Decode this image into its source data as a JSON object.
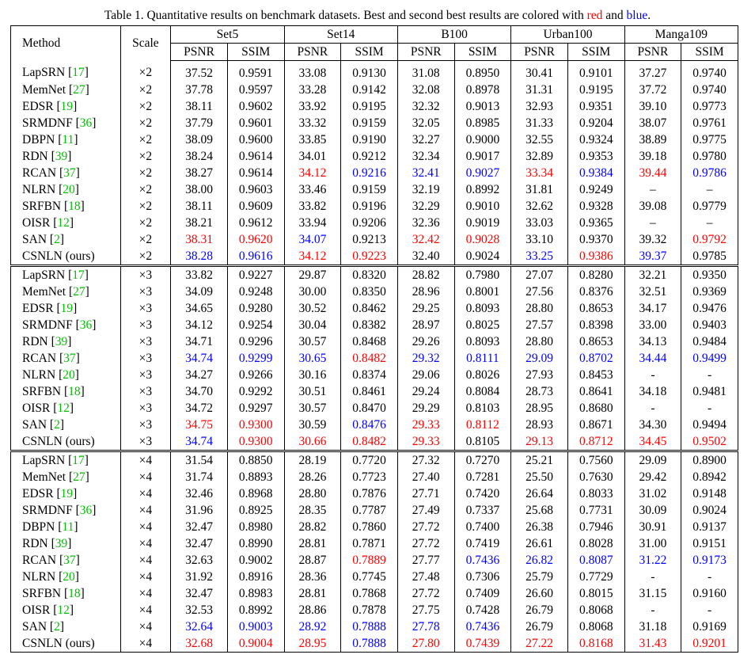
{
  "caption": {
    "prefix": "Table 1. Quantitative results on benchmark datasets. Best and second best results are colored with ",
    "red_word": "red",
    "middle": " and ",
    "blue_word": "blue",
    "suffix": "."
  },
  "header": {
    "method": "Method",
    "scale": "Scale",
    "datasets": [
      "Set5",
      "Set14",
      "B100",
      "Urban100",
      "Manga109"
    ],
    "metrics": [
      "PSNR",
      "SSIM"
    ]
  },
  "colors": {
    "red": "#ff0000",
    "blue": "#0000ff",
    "citation": "#00c000"
  },
  "groups": [
    {
      "scale": "×2",
      "rows": [
        {
          "name": "LapSRN",
          "ref": "17",
          "values": [
            "37.52",
            "0.9591",
            "33.08",
            "0.9130",
            "31.08",
            "0.8950",
            "30.41",
            "0.9101",
            "37.27",
            "0.9740"
          ],
          "colors": [
            "",
            "",
            "",
            "",
            "",
            "",
            "",
            "",
            "",
            ""
          ]
        },
        {
          "name": "MemNet",
          "ref": "27",
          "values": [
            "37.78",
            "0.9597",
            "33.28",
            "0.9142",
            "32.08",
            "0.8978",
            "31.31",
            "0.9195",
            "37.72",
            "0.9740"
          ],
          "colors": [
            "",
            "",
            "",
            "",
            "",
            "",
            "",
            "",
            "",
            ""
          ]
        },
        {
          "name": "EDSR",
          "ref": "19",
          "values": [
            "38.11",
            "0.9602",
            "33.92",
            "0.9195",
            "32.32",
            "0.9013",
            "32.93",
            "0.9351",
            "39.10",
            "0.9773"
          ],
          "colors": [
            "",
            "",
            "",
            "",
            "",
            "",
            "",
            "",
            "",
            ""
          ]
        },
        {
          "name": "SRMDNF",
          "ref": "36",
          "values": [
            "37.79",
            "0.9601",
            "33.32",
            "0.9159",
            "32.05",
            "0.8985",
            "31.33",
            "0.9204",
            "38.07",
            "0.9761"
          ],
          "colors": [
            "",
            "",
            "",
            "",
            "",
            "",
            "",
            "",
            "",
            ""
          ]
        },
        {
          "name": "DBPN",
          "ref": "11",
          "values": [
            "38.09",
            "0.9600",
            "33.85",
            "0.9190",
            "32.27",
            "0.9000",
            "32.55",
            "0.9324",
            "38.89",
            "0.9775"
          ],
          "colors": [
            "",
            "",
            "",
            "",
            "",
            "",
            "",
            "",
            "",
            ""
          ]
        },
        {
          "name": "RDN",
          "ref": "39",
          "values": [
            "38.24",
            "0.9614",
            "34.01",
            "0.9212",
            "32.34",
            "0.9017",
            "32.89",
            "0.9353",
            "39.18",
            "0.9780"
          ],
          "colors": [
            "",
            "",
            "",
            "",
            "",
            "",
            "",
            "",
            "",
            ""
          ]
        },
        {
          "name": "RCAN",
          "ref": "37",
          "values": [
            "38.27",
            "0.9614",
            "34.12",
            "0.9216",
            "32.41",
            "0.9027",
            "33.34",
            "0.9384",
            "39.44",
            "0.9786"
          ],
          "colors": [
            "",
            "",
            "red",
            "blue",
            "blue",
            "blue",
            "red",
            "blue",
            "red",
            "blue"
          ]
        },
        {
          "name": "NLRN",
          "ref": "20",
          "values": [
            "38.00",
            "0.9603",
            "33.46",
            "0.9159",
            "32.19",
            "0.8992",
            "31.81",
            "0.9249",
            "–",
            "–"
          ],
          "colors": [
            "",
            "",
            "",
            "",
            "",
            "",
            "",
            "",
            "",
            ""
          ]
        },
        {
          "name": "SRFBN",
          "ref": "18",
          "values": [
            "38.11",
            "0.9609",
            "33.82",
            "0.9196",
            "32.29",
            "0.9010",
            "32.62",
            "0.9328",
            "39.08",
            "0.9779"
          ],
          "colors": [
            "",
            "",
            "",
            "",
            "",
            "",
            "",
            "",
            "",
            ""
          ]
        },
        {
          "name": "OISR",
          "ref": "12",
          "values": [
            "38.21",
            "0.9612",
            "33.94",
            "0.9206",
            "32.36",
            "0.9019",
            "33.03",
            "0.9365",
            "–",
            "–"
          ],
          "colors": [
            "",
            "",
            "",
            "",
            "",
            "",
            "",
            "",
            "",
            ""
          ]
        },
        {
          "name": "SAN",
          "ref": "2",
          "values": [
            "38.31",
            "0.9620",
            "34.07",
            "0.9213",
            "32.42",
            "0.9028",
            "33.10",
            "0.9370",
            "39.32",
            "0.9792"
          ],
          "colors": [
            "red",
            "red",
            "blue",
            "",
            "red",
            "red",
            "",
            "",
            "",
            "red"
          ]
        },
        {
          "name": "CSNLN (ours)",
          "ref": "",
          "values": [
            "38.28",
            "0.9616",
            "34.12",
            "0.9223",
            "32.40",
            "0.9024",
            "33.25",
            "0.9386",
            "39.37",
            "0.9785"
          ],
          "colors": [
            "blue",
            "blue",
            "red",
            "red",
            "",
            "",
            "blue",
            "red",
            "blue",
            ""
          ]
        }
      ]
    },
    {
      "scale": "×3",
      "rows": [
        {
          "name": "LapSRN",
          "ref": "17",
          "values": [
            "33.82",
            "0.9227",
            "29.87",
            "0.8320",
            "28.82",
            "0.7980",
            "27.07",
            "0.8280",
            "32.21",
            "0.9350"
          ],
          "colors": [
            "",
            "",
            "",
            "",
            "",
            "",
            "",
            "",
            "",
            ""
          ]
        },
        {
          "name": "MemNet",
          "ref": "27",
          "values": [
            "34.09",
            "0.9248",
            "30.00",
            "0.8350",
            "28.96",
            "0.8001",
            "27.56",
            "0.8376",
            "32.51",
            "0.9369"
          ],
          "colors": [
            "",
            "",
            "",
            "",
            "",
            "",
            "",
            "",
            "",
            ""
          ]
        },
        {
          "name": "EDSR",
          "ref": "19",
          "values": [
            "34.65",
            "0.9280",
            "30.52",
            "0.8462",
            "29.25",
            "0.8093",
            "28.80",
            "0.8653",
            "34.17",
            "0.9476"
          ],
          "colors": [
            "",
            "",
            "",
            "",
            "",
            "",
            "",
            "",
            "",
            ""
          ]
        },
        {
          "name": "SRMDNF",
          "ref": "36",
          "values": [
            "34.12",
            "0.9254",
            "30.04",
            "0.8382",
            "28.97",
            "0.8025",
            "27.57",
            "0.8398",
            "33.00",
            "0.9403"
          ],
          "colors": [
            "",
            "",
            "",
            "",
            "",
            "",
            "",
            "",
            "",
            ""
          ]
        },
        {
          "name": "RDN",
          "ref": "39",
          "values": [
            "34.71",
            "0.9296",
            "30.57",
            "0.8468",
            "29.26",
            "0.8093",
            "28.80",
            "0.8653",
            "34.13",
            "0.9484"
          ],
          "colors": [
            "",
            "",
            "",
            "",
            "",
            "",
            "",
            "",
            "",
            ""
          ]
        },
        {
          "name": "RCAN",
          "ref": "37",
          "values": [
            "34.74",
            "0.9299",
            "30.65",
            "0.8482",
            "29.32",
            "0.8111",
            "29.09",
            "0.8702",
            "34.44",
            "0.9499"
          ],
          "colors": [
            "blue",
            "blue",
            "blue",
            "red",
            "blue",
            "blue",
            "blue",
            "blue",
            "blue",
            "blue"
          ]
        },
        {
          "name": "NLRN",
          "ref": "20",
          "values": [
            "34.27",
            "0.9266",
            "30.16",
            "0.8374",
            "29.06",
            "0.8026",
            "27.93",
            "0.8453",
            "-",
            "-"
          ],
          "colors": [
            "",
            "",
            "",
            "",
            "",
            "",
            "",
            "",
            "",
            ""
          ]
        },
        {
          "name": "SRFBN",
          "ref": "18",
          "values": [
            "34.70",
            "0.9292",
            "30.51",
            "0.8461",
            "29.24",
            "0.8084",
            "28.73",
            "0.8641",
            "34.18",
            "0.9481"
          ],
          "colors": [
            "",
            "",
            "",
            "",
            "",
            "",
            "",
            "",
            "",
            ""
          ]
        },
        {
          "name": "OISR",
          "ref": "12",
          "values": [
            "34.72",
            "0.9297",
            "30.57",
            "0.8470",
            "29.29",
            "0.8103",
            "28.95",
            "0.8680",
            "-",
            "-"
          ],
          "colors": [
            "",
            "",
            "",
            "",
            "",
            "",
            "",
            "",
            "",
            ""
          ]
        },
        {
          "name": "SAN",
          "ref": "2",
          "values": [
            "34.75",
            "0.9300",
            "30.59",
            "0.8476",
            "29.33",
            "0.8112",
            "28.93",
            "0.8671",
            "34.30",
            "0.9494"
          ],
          "colors": [
            "red",
            "red",
            "",
            "blue",
            "red",
            "red",
            "",
            "",
            "",
            ""
          ]
        },
        {
          "name": "CSNLN (ours)",
          "ref": "",
          "values": [
            "34.74",
            "0.9300",
            "30.66",
            "0.8482",
            "29.33",
            "0.8105",
            "29.13",
            "0.8712",
            "34.45",
            "0.9502"
          ],
          "colors": [
            "blue",
            "red",
            "red",
            "red",
            "red",
            "",
            "red",
            "red",
            "red",
            "red"
          ]
        }
      ]
    },
    {
      "scale": "×4",
      "rows": [
        {
          "name": "LapSRN",
          "ref": "17",
          "values": [
            "31.54",
            "0.8850",
            "28.19",
            "0.7720",
            "27.32",
            "0.7270",
            "25.21",
            "0.7560",
            "29.09",
            "0.8900"
          ],
          "colors": [
            "",
            "",
            "",
            "",
            "",
            "",
            "",
            "",
            "",
            ""
          ]
        },
        {
          "name": "MemNet",
          "ref": "27",
          "values": [
            "31.74",
            "0.8893",
            "28.26",
            "0.7723",
            "27.40",
            "0.7281",
            "25.50",
            "0.7630",
            "29.42",
            "0.8942"
          ],
          "colors": [
            "",
            "",
            "",
            "",
            "",
            "",
            "",
            "",
            "",
            ""
          ]
        },
        {
          "name": "EDSR",
          "ref": "19",
          "values": [
            "32.46",
            "0.8968",
            "28.80",
            "0.7876",
            "27.71",
            "0.7420",
            "26.64",
            "0.8033",
            "31.02",
            "0.9148"
          ],
          "colors": [
            "",
            "",
            "",
            "",
            "",
            "",
            "",
            "",
            "",
            ""
          ]
        },
        {
          "name": "SRMDNF",
          "ref": "36",
          "values": [
            "31.96",
            "0.8925",
            "28.35",
            "0.7787",
            "27.49",
            "0.7337",
            "25.68",
            "0.7731",
            "30.09",
            "0.9024"
          ],
          "colors": [
            "",
            "",
            "",
            "",
            "",
            "",
            "",
            "",
            "",
            ""
          ]
        },
        {
          "name": "DBPN",
          "ref": "11",
          "values": [
            "32.47",
            "0.8980",
            "28.82",
            "0.7860",
            "27.72",
            "0.7400",
            "26.38",
            "0.7946",
            "30.91",
            "0.9137"
          ],
          "colors": [
            "",
            "",
            "",
            "",
            "",
            "",
            "",
            "",
            "",
            ""
          ]
        },
        {
          "name": "RDN",
          "ref": "39",
          "values": [
            "32.47",
            "0.8990",
            "28.81",
            "0.7871",
            "27.72",
            "0.7419",
            "26.61",
            "0.8028",
            "31.00",
            "0.9151"
          ],
          "colors": [
            "",
            "",
            "",
            "",
            "",
            "",
            "",
            "",
            "",
            ""
          ]
        },
        {
          "name": "RCAN",
          "ref": "37",
          "values": [
            "32.63",
            "0.9002",
            "28.87",
            "0.7889",
            "27.77",
            "0.7436",
            "26.82",
            "0.8087",
            "31.22",
            "0.9173"
          ],
          "colors": [
            "",
            "",
            "",
            "red",
            "",
            "blue",
            "blue",
            "blue",
            "blue",
            "blue"
          ]
        },
        {
          "name": "NLRN",
          "ref": "20",
          "values": [
            "31.92",
            "0.8916",
            "28.36",
            "0.7745",
            "27.48",
            "0.7306",
            "25.79",
            "0.7729",
            "-",
            "-"
          ],
          "colors": [
            "",
            "",
            "",
            "",
            "",
            "",
            "",
            "",
            "",
            ""
          ]
        },
        {
          "name": "SRFBN",
          "ref": "18",
          "values": [
            "32.47",
            "0.8983",
            "28.81",
            "0.7868",
            "27.72",
            "0.7409",
            "26.60",
            "0.8015",
            "31.15",
            "0.9160"
          ],
          "colors": [
            "",
            "",
            "",
            "",
            "",
            "",
            "",
            "",
            "",
            ""
          ]
        },
        {
          "name": "OISR",
          "ref": "12",
          "values": [
            "32.53",
            "0.8992",
            "28.86",
            "0.7878",
            "27.75",
            "0.7428",
            "26.79",
            "0.8068",
            "-",
            "-"
          ],
          "colors": [
            "",
            "",
            "",
            "",
            "",
            "",
            "",
            "",
            "",
            ""
          ]
        },
        {
          "name": "SAN",
          "ref": "2",
          "values": [
            "32.64",
            "0.9003",
            "28.92",
            "0.7888",
            "27.78",
            "0.7436",
            "26.79",
            "0.8068",
            "31.18",
            "0.9169"
          ],
          "colors": [
            "blue",
            "blue",
            "blue",
            "blue",
            "blue",
            "blue",
            "",
            "",
            "",
            ""
          ]
        },
        {
          "name": "CSNLN (ours)",
          "ref": "",
          "values": [
            "32.68",
            "0.9004",
            "28.95",
            "0.7888",
            "27.80",
            "0.7439",
            "27.22",
            "0.8168",
            "31.43",
            "0.9201"
          ],
          "colors": [
            "red",
            "red",
            "red",
            "blue",
            "red",
            "red",
            "red",
            "red",
            "red",
            "red"
          ]
        }
      ]
    }
  ]
}
